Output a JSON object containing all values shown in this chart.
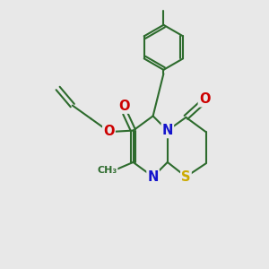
{
  "bg_color": "#e8e8e8",
  "bond_color": "#2d6b2d",
  "bond_width": 1.5,
  "atom_colors": {
    "N": "#1414cc",
    "S": "#ccaa00",
    "O": "#cc0000",
    "C": "#2d6b2d"
  },
  "font_size": 10.5
}
